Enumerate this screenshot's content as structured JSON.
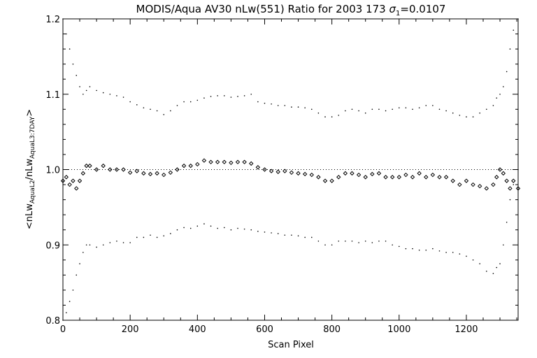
{
  "chart_data": {
    "type": "scatter",
    "title": {
      "prefix": "MODIS/Aqua AV30 nLw(551) Ratio for 2003 173 ",
      "sigma_symbol": "σ",
      "sigma_sub": "1",
      "suffix": "=0.0107"
    },
    "xlabel": "Scan Pixel",
    "ylabel": {
      "open": "<nLw",
      "sub1": "AquaL2",
      "mid": "/nLw",
      "sub2": "AquaL3:7DAY",
      "close": ">"
    },
    "xlim": [
      0,
      1354
    ],
    "ylim": [
      0.8,
      1.2
    ],
    "xticks": [
      0,
      200,
      400,
      600,
      800,
      1000,
      1200
    ],
    "xtick_labels": [
      "0",
      "200",
      "400",
      "600",
      "800",
      "1000",
      "1200"
    ],
    "yticks": [
      0.8,
      0.9,
      1.0,
      1.1,
      1.2
    ],
    "ytick_labels": [
      "0.8",
      "0.9",
      "1.0",
      "1.1",
      "1.2"
    ],
    "reference_line": 1.0,
    "grid": false,
    "series": [
      {
        "role": "mean",
        "marker": "diamond",
        "x": [
          0,
          10,
          20,
          30,
          40,
          50,
          60,
          70,
          80,
          100,
          120,
          140,
          160,
          180,
          200,
          220,
          240,
          260,
          280,
          300,
          320,
          340,
          360,
          380,
          400,
          420,
          440,
          460,
          480,
          500,
          520,
          540,
          560,
          580,
          600,
          620,
          640,
          660,
          680,
          700,
          720,
          740,
          760,
          780,
          800,
          820,
          840,
          860,
          880,
          900,
          920,
          940,
          960,
          980,
          1000,
          1020,
          1040,
          1060,
          1080,
          1100,
          1120,
          1140,
          1160,
          1180,
          1200,
          1220,
          1240,
          1260,
          1280,
          1290,
          1300,
          1310,
          1320,
          1330,
          1340,
          1354
        ],
        "y": [
          0.985,
          0.99,
          0.98,
          0.985,
          0.975,
          0.985,
          0.995,
          1.005,
          1.005,
          1.0,
          1.005,
          1.0,
          1.0,
          1.0,
          0.996,
          0.998,
          0.995,
          0.994,
          0.995,
          0.993,
          0.996,
          1.0,
          1.005,
          1.005,
          1.007,
          1.012,
          1.01,
          1.01,
          1.01,
          1.009,
          1.01,
          1.01,
          1.008,
          1.003,
          1.0,
          0.998,
          0.997,
          0.998,
          0.996,
          0.995,
          0.994,
          0.993,
          0.99,
          0.985,
          0.985,
          0.99,
          0.995,
          0.995,
          0.993,
          0.99,
          0.994,
          0.995,
          0.99,
          0.99,
          0.99,
          0.993,
          0.99,
          0.995,
          0.99,
          0.993,
          0.99,
          0.99,
          0.985,
          0.98,
          0.985,
          0.98,
          0.978,
          0.975,
          0.98,
          0.99,
          1.0,
          0.995,
          0.985,
          0.975,
          0.985,
          0.975
        ]
      },
      {
        "role": "upper",
        "marker": "dot",
        "x": [
          0,
          10,
          20,
          30,
          40,
          50,
          60,
          70,
          80,
          100,
          120,
          140,
          160,
          180,
          200,
          220,
          240,
          260,
          280,
          300,
          320,
          340,
          360,
          380,
          400,
          420,
          440,
          460,
          480,
          500,
          520,
          540,
          560,
          580,
          600,
          620,
          640,
          660,
          680,
          700,
          720,
          740,
          760,
          780,
          800,
          820,
          840,
          860,
          880,
          900,
          920,
          940,
          960,
          980,
          1000,
          1020,
          1040,
          1060,
          1080,
          1100,
          1120,
          1140,
          1160,
          1180,
          1200,
          1220,
          1240,
          1260,
          1280,
          1290,
          1300,
          1310,
          1320,
          1330,
          1340,
          1354
        ],
        "y": [
          1.2,
          1.18,
          1.16,
          1.14,
          1.125,
          1.11,
          1.1,
          1.105,
          1.11,
          1.105,
          1.102,
          1.1,
          1.098,
          1.096,
          1.09,
          1.086,
          1.082,
          1.08,
          1.078,
          1.073,
          1.078,
          1.085,
          1.09,
          1.09,
          1.092,
          1.095,
          1.097,
          1.098,
          1.098,
          1.096,
          1.097,
          1.098,
          1.1,
          1.09,
          1.088,
          1.087,
          1.085,
          1.085,
          1.083,
          1.083,
          1.082,
          1.08,
          1.075,
          1.07,
          1.07,
          1.072,
          1.078,
          1.08,
          1.078,
          1.075,
          1.08,
          1.08,
          1.078,
          1.08,
          1.082,
          1.082,
          1.08,
          1.082,
          1.085,
          1.085,
          1.08,
          1.078,
          1.075,
          1.072,
          1.07,
          1.07,
          1.075,
          1.08,
          1.085,
          1.095,
          1.1,
          1.11,
          1.13,
          1.16,
          1.185,
          1.2
        ]
      },
      {
        "role": "lower",
        "marker": "dot",
        "x": [
          0,
          10,
          20,
          30,
          40,
          50,
          60,
          70,
          80,
          100,
          120,
          140,
          160,
          180,
          200,
          220,
          240,
          260,
          280,
          300,
          320,
          340,
          360,
          380,
          400,
          420,
          440,
          460,
          480,
          500,
          520,
          540,
          560,
          580,
          600,
          620,
          640,
          660,
          680,
          700,
          720,
          740,
          760,
          780,
          800,
          820,
          840,
          860,
          880,
          900,
          920,
          940,
          960,
          980,
          1000,
          1020,
          1040,
          1060,
          1080,
          1100,
          1120,
          1140,
          1160,
          1180,
          1200,
          1220,
          1240,
          1260,
          1280,
          1290,
          1300,
          1310,
          1320,
          1330,
          1340,
          1354
        ],
        "y": [
          0.8,
          0.81,
          0.825,
          0.84,
          0.86,
          0.875,
          0.89,
          0.9,
          0.9,
          0.897,
          0.9,
          0.903,
          0.905,
          0.903,
          0.903,
          0.91,
          0.91,
          0.913,
          0.91,
          0.912,
          0.915,
          0.92,
          0.923,
          0.922,
          0.925,
          0.928,
          0.925,
          0.922,
          0.923,
          0.92,
          0.922,
          0.921,
          0.92,
          0.918,
          0.917,
          0.916,
          0.915,
          0.913,
          0.913,
          0.912,
          0.91,
          0.91,
          0.905,
          0.9,
          0.9,
          0.905,
          0.905,
          0.905,
          0.903,
          0.905,
          0.903,
          0.905,
          0.905,
          0.9,
          0.898,
          0.895,
          0.895,
          0.893,
          0.893,
          0.895,
          0.892,
          0.89,
          0.89,
          0.888,
          0.885,
          0.88,
          0.875,
          0.865,
          0.862,
          0.87,
          0.875,
          0.9,
          0.93,
          0.96,
          0.98,
          1.0
        ]
      }
    ]
  }
}
